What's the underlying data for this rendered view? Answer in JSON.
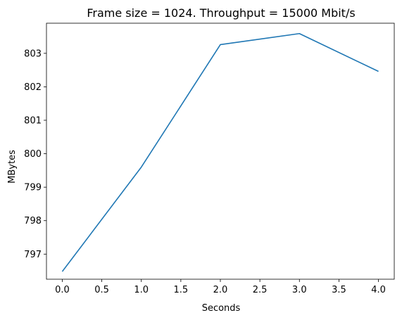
{
  "chart_data": {
    "type": "line",
    "title": "Frame size = 1024. Throughput = 15000 Mbit/s",
    "xlabel": "Seconds",
    "ylabel": "MBytes",
    "xlim": [
      -0.2,
      4.2
    ],
    "ylim": [
      796.25,
      803.9
    ],
    "xticks": [
      "0.0",
      "0.5",
      "1.0",
      "1.5",
      "2.0",
      "2.5",
      "3.0",
      "3.5",
      "4.0"
    ],
    "yticks": [
      "797",
      "798",
      "799",
      "800",
      "801",
      "802",
      "803"
    ],
    "grid": false,
    "color": "#1f77b4",
    "series": [
      {
        "x": [
          0,
          1,
          2,
          3,
          4
        ],
        "y": [
          796.48,
          799.6,
          803.26,
          803.59,
          802.46
        ]
      }
    ]
  }
}
